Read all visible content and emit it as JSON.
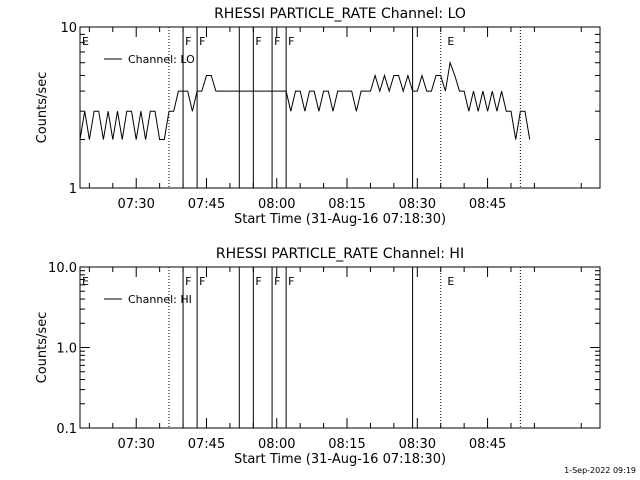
{
  "footer_stamp": "1-Sep-2022 09:19",
  "chart_data": [
    {
      "type": "line",
      "title": "RHESSI PARTICLE_RATE Channel: LO",
      "xlabel": "Start Time (31-Aug-16 07:18:30)",
      "ylabel": "Counts/sec",
      "yscale": "log",
      "ylim": [
        1,
        10
      ],
      "y_ticks": [
        {
          "v": 1,
          "label": "1"
        },
        {
          "v": 10,
          "label": "10"
        }
      ],
      "xlim": [
        "07:18",
        "09:09"
      ],
      "x_ticks": [
        "07:30",
        "07:45",
        "08:00",
        "08:15",
        "08:30",
        "08:45"
      ],
      "legend_location": "upper-left",
      "legend": "Channel: LO",
      "series": [
        {
          "name": "Channel: LO",
          "x": [
            "07:18",
            "07:19",
            "07:20",
            "07:21",
            "07:22",
            "07:23",
            "07:24",
            "07:25",
            "07:26",
            "07:27",
            "07:28",
            "07:29",
            "07:30",
            "07:31",
            "07:32",
            "07:33",
            "07:34",
            "07:35",
            "07:36",
            "07:37",
            "07:38",
            "07:39",
            "07:40",
            "07:41",
            "07:42",
            "07:43",
            "07:44",
            "07:45",
            "07:46",
            "07:47",
            "07:48",
            "07:49",
            "07:50",
            "07:51",
            "07:52",
            "07:53",
            "07:54",
            "07:55",
            "07:56",
            "07:57",
            "07:58",
            "07:59",
            "08:00",
            "08:01",
            "08:02",
            "08:03",
            "08:04",
            "08:05",
            "08:06",
            "08:07",
            "08:08",
            "08:09",
            "08:10",
            "08:11",
            "08:12",
            "08:13",
            "08:14",
            "08:15",
            "08:16",
            "08:17",
            "08:18",
            "08:19",
            "08:20",
            "08:21",
            "08:22",
            "08:23",
            "08:24",
            "08:25",
            "08:26",
            "08:27",
            "08:28",
            "08:29",
            "08:30",
            "08:31",
            "08:32",
            "08:33",
            "08:34",
            "08:35",
            "08:36",
            "08:37",
            "08:38",
            "08:39",
            "08:40",
            "08:41",
            "08:42",
            "08:43",
            "08:44",
            "08:45",
            "08:46",
            "08:47",
            "08:48",
            "08:49",
            "08:50",
            "08:51",
            "08:52",
            "08:53",
            "08:54"
          ],
          "y": [
            2,
            3,
            2,
            3,
            3,
            2,
            3,
            2,
            3,
            2,
            3,
            3,
            2,
            3,
            2,
            3,
            3,
            2,
            2,
            3,
            3,
            4,
            4,
            4,
            3,
            4,
            4,
            5,
            5,
            4,
            4,
            4,
            4,
            4,
            4,
            4,
            4,
            4,
            4,
            4,
            4,
            4,
            4,
            4,
            4,
            3,
            4,
            4,
            3,
            4,
            4,
            3,
            4,
            4,
            3,
            4,
            4,
            4,
            4,
            3,
            4,
            4,
            4,
            5,
            4,
            5,
            4,
            5,
            5,
            4,
            5,
            4,
            4,
            5,
            4,
            4,
            5,
            5,
            4,
            6,
            5,
            4,
            4,
            3,
            4,
            3,
            4,
            3,
            4,
            3,
            4,
            3,
            3,
            2,
            3,
            3,
            2
          ]
        }
      ],
      "annotations": [
        {
          "label": "E",
          "x": "07:18"
        },
        {
          "label": "F",
          "x": "07:40"
        },
        {
          "label": "F",
          "x": "07:43"
        },
        {
          "label": "F",
          "x": "07:55"
        },
        {
          "label": "F",
          "x": "07:59"
        },
        {
          "label": "F",
          "x": "08:02"
        },
        {
          "label": "E",
          "x": "08:36"
        }
      ],
      "solid_vlines": [
        "07:40",
        "07:43",
        "07:52",
        "07:55",
        "07:59",
        "08:02",
        "08:29"
      ],
      "dotted_vlines": [
        "07:37",
        "08:35",
        "08:52"
      ]
    },
    {
      "type": "line",
      "title": "RHESSI PARTICLE_RATE Channel: HI",
      "xlabel": "Start Time (31-Aug-16 07:18:30)",
      "ylabel": "Counts/sec",
      "yscale": "log",
      "ylim": [
        0.1,
        10
      ],
      "y_ticks": [
        {
          "v": 0.1,
          "label": "0.1"
        },
        {
          "v": 1,
          "label": "1.0"
        },
        {
          "v": 10,
          "label": "10.0"
        }
      ],
      "xlim": [
        "07:18",
        "09:09"
      ],
      "x_ticks": [
        "07:30",
        "07:45",
        "08:00",
        "08:15",
        "08:30",
        "08:45"
      ],
      "legend_location": "upper-left",
      "legend": "Channel: HI",
      "series": [],
      "annotations": [
        {
          "label": "E",
          "x": "07:18"
        },
        {
          "label": "F",
          "x": "07:40"
        },
        {
          "label": "F",
          "x": "07:43"
        },
        {
          "label": "F",
          "x": "07:55"
        },
        {
          "label": "F",
          "x": "07:59"
        },
        {
          "label": "F",
          "x": "08:02"
        },
        {
          "label": "E",
          "x": "08:36"
        }
      ],
      "solid_vlines": [
        "07:40",
        "07:43",
        "07:52",
        "07:55",
        "07:59",
        "08:02",
        "08:29"
      ],
      "dotted_vlines": [
        "07:37",
        "08:35",
        "08:52"
      ]
    }
  ]
}
